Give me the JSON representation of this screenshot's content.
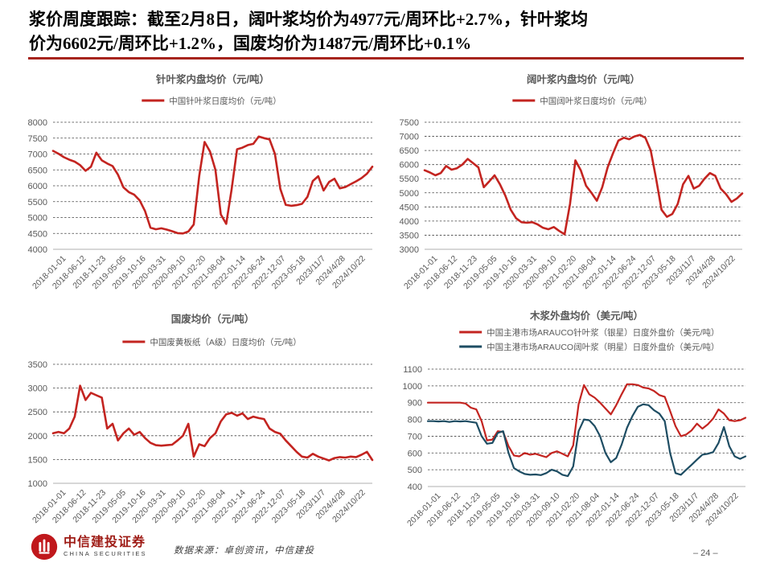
{
  "header": {
    "title": "浆价周度跟踪：截至2月8日，阔叶浆均价为4977元/周环比+2.7%，针叶浆均\n价为6602元/周环比+1.2%，国废均价为1487元/周环比+0.1%",
    "underline_color": "#a6241d"
  },
  "footer": {
    "logo_cn": "中信建投证券",
    "logo_en": "CHINA SECURITIES",
    "source": "数据来源：卓创资讯，中信建投",
    "page_number": "– 24 –"
  },
  "colors": {
    "series_red": "#c32420",
    "series_blue": "#1e4d63",
    "chart_text_gray": "#595959"
  },
  "chart_data": [
    {
      "type": "line",
      "title": "针叶浆内盘均价（元/吨）",
      "ymin": 4000,
      "ymax": 8000,
      "ystep": 500,
      "ylim": [
        4000,
        8000
      ],
      "grid": true,
      "legend_position": "top",
      "categories": [
        "2018-01-01",
        "2018-06-12",
        "2018-11-23",
        "2019-05-05",
        "2019-10-16",
        "2020-03-31",
        "2020-09-10",
        "2021-02-20",
        "2021-08-04",
        "2022-01-14",
        "2022-06-24",
        "2022-12-07",
        "2023-05-18",
        "2023/11/7",
        "2024/4/28",
        "2024/10/22"
      ],
      "series": [
        {
          "name": "中国针叶浆日度均价（元/吨）",
          "color": "#c32420",
          "values": [
            7100,
            7010,
            6900,
            6820,
            6760,
            6650,
            6470,
            6600,
            7040,
            6800,
            6700,
            6620,
            6350,
            5950,
            5800,
            5720,
            5540,
            5200,
            4680,
            4630,
            4660,
            4620,
            4570,
            4510,
            4500,
            4560,
            4780,
            6300,
            7380,
            7080,
            6500,
            5100,
            4800,
            5900,
            7150,
            7200,
            7280,
            7320,
            7550,
            7500,
            7460,
            7000,
            5900,
            5400,
            5370,
            5390,
            5430,
            5650,
            6150,
            6300,
            5850,
            6120,
            6220,
            5920,
            5960,
            6050,
            6140,
            6240,
            6380,
            6600
          ]
        }
      ]
    },
    {
      "type": "line",
      "title": "阔叶浆内盘均价（元/吨）",
      "ymin": 3000,
      "ymax": 7500,
      "ystep": 500,
      "ylim": [
        3000,
        7500
      ],
      "grid": true,
      "legend_position": "top",
      "categories": [
        "2018-01-01",
        "2018-06-12",
        "2018-11-23",
        "2019-05-05",
        "2019-10-16",
        "2020-03-31",
        "2020-09-10",
        "2021-02-20",
        "2021-08-04",
        "2022-01-14",
        "2022-06-24",
        "2022-12-07",
        "2023-05-18",
        "2023/11/7",
        "2024/4/28",
        "2024/10/22"
      ],
      "series": [
        {
          "name": "中国阔叶浆日度均价（元/吨）",
          "color": "#c32420",
          "values": [
            5800,
            5720,
            5620,
            5700,
            5950,
            5820,
            5870,
            6000,
            6200,
            6050,
            5900,
            5200,
            5400,
            5620,
            5300,
            4900,
            4400,
            4100,
            3960,
            3940,
            3960,
            3880,
            3760,
            3710,
            3790,
            3650,
            3530,
            4600,
            6150,
            5800,
            5250,
            5000,
            4720,
            5200,
            5900,
            6400,
            6850,
            6950,
            6900,
            7000,
            7050,
            6950,
            6500,
            5500,
            4400,
            4150,
            4250,
            4600,
            5300,
            5600,
            5150,
            5250,
            5500,
            5700,
            5600,
            5150,
            4950,
            4680,
            4800,
            4980
          ]
        }
      ]
    },
    {
      "type": "line",
      "title": "国废均价（元/吨）",
      "ymin": 1000,
      "ymax": 3500,
      "ystep": 500,
      "ylim": [
        1000,
        3500
      ],
      "grid": true,
      "legend_position": "top",
      "categories": [
        "2018-01-01",
        "2018-06-12",
        "2018-11-23",
        "2019-05-05",
        "2019-10-16",
        "2020-03-31",
        "2020-09-10",
        "2021-02-20",
        "2021-08-04",
        "2022-01-14",
        "2022-06-24",
        "2022-12-07",
        "2023-05-18",
        "2023/11/7",
        "2024/4/28",
        "2024/10/22"
      ],
      "series": [
        {
          "name": "中国废黄板纸（A级）日度均价（元/吨）",
          "color": "#c32420",
          "values": [
            2050,
            2080,
            2050,
            2150,
            2400,
            3050,
            2750,
            2900,
            2850,
            2800,
            2150,
            2250,
            1900,
            2050,
            2150,
            2020,
            2080,
            1950,
            1850,
            1800,
            1790,
            1800,
            1810,
            1900,
            2000,
            2250,
            1560,
            1820,
            1780,
            1950,
            2050,
            2300,
            2450,
            2480,
            2420,
            2470,
            2350,
            2400,
            2370,
            2350,
            2150,
            2080,
            2040,
            1900,
            1780,
            1660,
            1560,
            1540,
            1620,
            1560,
            1520,
            1480,
            1530,
            1550,
            1540,
            1560,
            1550,
            1600,
            1660,
            1490
          ]
        }
      ]
    },
    {
      "type": "line",
      "title": "木浆外盘均价（美元/吨）",
      "ymin": 400,
      "ymax": 1100,
      "ystep": 100,
      "ylim": [
        400,
        1100
      ],
      "grid": true,
      "legend_position": "top",
      "categories": [
        "2018-01-01",
        "2018-06-12",
        "2018-11-23",
        "2019-05-05",
        "2019-10-16",
        "2020-03-31",
        "2020-09-10",
        "2021-02-20",
        "2021-08-04",
        "2022-01-14",
        "2022-06-24",
        "2022-12-07",
        "2023-05-18",
        "2023/11/7",
        "2024/4/28",
        "2024/10/22"
      ],
      "series": [
        {
          "name": "中国主港市场ARAUCO针叶浆（银星）日度外盘价（美元/吨）",
          "color": "#c32420",
          "values": [
            900,
            900,
            900,
            900,
            900,
            900,
            900,
            895,
            870,
            860,
            790,
            675,
            680,
            730,
            725,
            640,
            585,
            580,
            600,
            590,
            595,
            585,
            575,
            600,
            610,
            595,
            580,
            645,
            890,
            1005,
            950,
            930,
            900,
            865,
            830,
            885,
            950,
            1010,
            1010,
            1005,
            990,
            985,
            970,
            945,
            935,
            850,
            760,
            700,
            710,
            735,
            775,
            745,
            770,
            805,
            860,
            835,
            795,
            790,
            795,
            810
          ]
        },
        {
          "name": "中国主港市场ARAUCO阔叶浆（明星）日度外盘价（美元/吨）",
          "color": "#1e4d63",
          "values": [
            790,
            790,
            788,
            790,
            785,
            790,
            788,
            790,
            785,
            780,
            700,
            655,
            660,
            720,
            730,
            600,
            510,
            490,
            475,
            470,
            472,
            468,
            480,
            500,
            490,
            470,
            462,
            520,
            730,
            800,
            795,
            760,
            700,
            600,
            545,
            570,
            650,
            750,
            820,
            875,
            890,
            885,
            855,
            835,
            790,
            600,
            480,
            470,
            500,
            530,
            560,
            590,
            595,
            605,
            660,
            755,
            640,
            580,
            565,
            580
          ]
        }
      ]
    }
  ]
}
